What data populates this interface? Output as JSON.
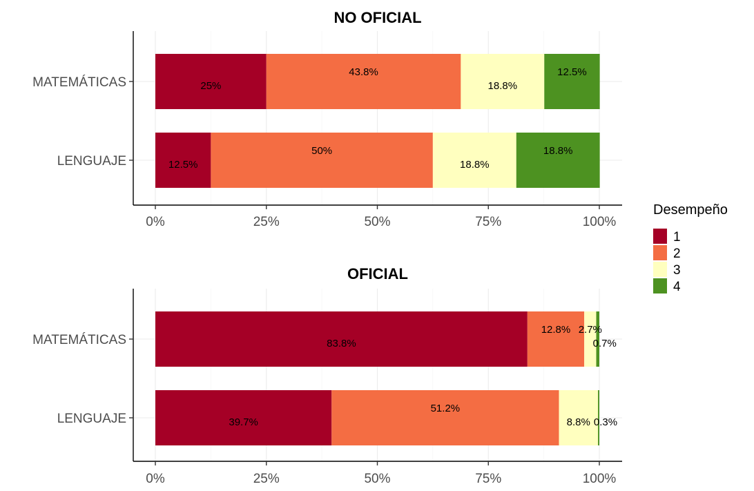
{
  "chart_data": [
    {
      "type": "bar",
      "orientation": "horizontal",
      "stacked": true,
      "title": "NO OFICIAL",
      "categories": [
        "MATEMÁTICAS",
        "LENGUAJE"
      ],
      "series": [
        {
          "name": "1",
          "values": [
            25,
            12.5
          ],
          "labels": [
            "25%",
            "12.5%"
          ]
        },
        {
          "name": "2",
          "values": [
            43.8,
            50
          ],
          "labels": [
            "43.8%",
            "50%"
          ]
        },
        {
          "name": "3",
          "values": [
            18.8,
            18.8
          ],
          "labels": [
            "18.8%",
            "18.8%"
          ]
        },
        {
          "name": "4",
          "values": [
            12.5,
            18.8
          ],
          "labels": [
            "12.5%",
            "18.8%"
          ]
        }
      ],
      "xlim": [
        0,
        100
      ],
      "xticks": [
        "0%",
        "25%",
        "50%",
        "75%",
        "100%"
      ]
    },
    {
      "type": "bar",
      "orientation": "horizontal",
      "stacked": true,
      "title": "OFICIAL",
      "categories": [
        "MATEMÁTICAS",
        "LENGUAJE"
      ],
      "series": [
        {
          "name": "1",
          "values": [
            83.8,
            39.7
          ],
          "labels": [
            "83.8%",
            "39.7%"
          ]
        },
        {
          "name": "2",
          "values": [
            12.8,
            51.2
          ],
          "labels": [
            "12.8%",
            "51.2%"
          ]
        },
        {
          "name": "3",
          "values": [
            2.7,
            8.8
          ],
          "labels": [
            "2.7%",
            "8.8%"
          ]
        },
        {
          "name": "4",
          "values": [
            0.7,
            0.3
          ],
          "labels": [
            "0.7%",
            "0.3%"
          ]
        }
      ],
      "xlim": [
        0,
        100
      ],
      "xticks": [
        "0%",
        "25%",
        "50%",
        "75%",
        "100%"
      ]
    }
  ],
  "legend": {
    "title": "Desempeño",
    "position": "right",
    "items": [
      {
        "label": "1",
        "color": "#a50026"
      },
      {
        "label": "2",
        "color": "#f46d43"
      },
      {
        "label": "3",
        "color": "#ffffbf"
      },
      {
        "label": "4",
        "color": "#4d9221"
      }
    ]
  }
}
